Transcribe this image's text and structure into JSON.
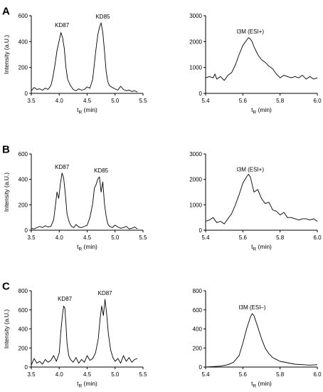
{
  "chart_data": [
    {
      "type": "line",
      "row_label": "A",
      "xlabel": "t",
      "xlabel_sub": "R",
      "xlabel_unit": " (min)",
      "ylabel": "Intensity (a.U.)",
      "xlim": [
        3.5,
        5.5
      ],
      "ylim": [
        0,
        600
      ],
      "xticks": [
        "3.5",
        "4.0",
        "4.5",
        "5.0",
        "5.5"
      ],
      "yticks": [
        "0",
        "200",
        "400",
        "600"
      ],
      "annotations": [
        {
          "text": "KD87",
          "x": 4.05,
          "y": 480
        },
        {
          "text": "KD85",
          "x": 4.78,
          "y": 545
        }
      ],
      "series": [
        {
          "x": [
            3.5,
            3.55,
            3.6,
            3.65,
            3.7,
            3.75,
            3.8,
            3.85,
            3.88,
            3.92,
            3.96,
            4.0,
            4.03,
            4.06,
            4.09,
            4.12,
            4.15,
            4.2,
            4.25,
            4.3,
            4.35,
            4.4,
            4.45,
            4.5,
            4.55,
            4.6,
            4.63,
            4.66,
            4.69,
            4.72,
            4.75,
            4.78,
            4.81,
            4.84,
            4.87,
            4.9,
            4.95,
            5.0,
            5.05,
            5.1,
            5.15,
            5.2,
            5.25,
            5.3,
            5.35,
            5.4
          ],
          "y": [
            20,
            45,
            30,
            35,
            25,
            40,
            30,
            60,
            110,
            210,
            330,
            410,
            470,
            430,
            350,
            200,
            110,
            60,
            30,
            20,
            35,
            25,
            30,
            50,
            40,
            110,
            230,
            350,
            450,
            510,
            545,
            470,
            330,
            170,
            90,
            60,
            45,
            35,
            25,
            55,
            30,
            20,
            25,
            15,
            20,
            10
          ]
        }
      ]
    },
    {
      "type": "line",
      "xlabel": "t",
      "xlabel_sub": "R",
      "xlabel_unit": " (min)",
      "xlim": [
        5.4,
        6.0
      ],
      "ylim": [
        0,
        3000
      ],
      "xticks": [
        "5.4",
        "5.6",
        "5.8",
        "6.0"
      ],
      "yticks": [
        "0",
        "1000",
        "2000",
        "3000"
      ],
      "annotations": [
        {
          "text": "I3M (ESI+)",
          "x": 5.64,
          "y": 2150
        }
      ],
      "series": [
        {
          "x": [
            5.4,
            5.42,
            5.44,
            5.45,
            5.46,
            5.48,
            5.5,
            5.52,
            5.54,
            5.56,
            5.58,
            5.6,
            5.62,
            5.63,
            5.64,
            5.65,
            5.66,
            5.68,
            5.7,
            5.72,
            5.74,
            5.76,
            5.78,
            5.8,
            5.82,
            5.84,
            5.86,
            5.88,
            5.9,
            5.92,
            5.94,
            5.96,
            5.98,
            6.0
          ],
          "y": [
            600,
            650,
            600,
            750,
            550,
            650,
            500,
            700,
            800,
            1100,
            1500,
            1850,
            2050,
            2150,
            2100,
            2000,
            1800,
            1500,
            1300,
            1200,
            1050,
            950,
            750,
            600,
            700,
            650,
            600,
            650,
            600,
            700,
            550,
            650,
            550,
            600
          ]
        }
      ]
    },
    {
      "type": "line",
      "row_label": "B",
      "xlabel": "t",
      "xlabel_sub": "R",
      "xlabel_unit": " (min)",
      "ylabel": "Intensity (a.U.)",
      "xlim": [
        3.5,
        5.5
      ],
      "ylim": [
        0,
        600
      ],
      "xticks": [
        "3.5",
        "4.0",
        "4.5",
        "5.0",
        "5.5"
      ],
      "yticks": [
        "0",
        "200",
        "400",
        "600"
      ],
      "annotations": [
        {
          "text": "KD87",
          "x": 4.05,
          "y": 450
        },
        {
          "text": "KD85",
          "x": 4.75,
          "y": 420
        }
      ],
      "series": [
        {
          "x": [
            3.5,
            3.55,
            3.6,
            3.65,
            3.7,
            3.75,
            3.8,
            3.85,
            3.9,
            3.93,
            3.96,
            3.99,
            4.02,
            4.05,
            4.08,
            4.11,
            4.14,
            4.18,
            4.22,
            4.26,
            4.3,
            4.35,
            4.4,
            4.45,
            4.5,
            4.55,
            4.6,
            4.63,
            4.66,
            4.69,
            4.72,
            4.75,
            4.78,
            4.81,
            4.84,
            4.87,
            4.9,
            4.95,
            5.0,
            5.05,
            5.1,
            5.15,
            5.2,
            5.25,
            5.3,
            5.35,
            5.4
          ],
          "y": [
            15,
            10,
            20,
            30,
            20,
            35,
            25,
            30,
            80,
            190,
            300,
            250,
            360,
            450,
            410,
            280,
            130,
            60,
            30,
            20,
            45,
            25,
            20,
            30,
            40,
            100,
            210,
            330,
            360,
            400,
            420,
            300,
            380,
            210,
            110,
            50,
            30,
            20,
            40,
            25,
            15,
            20,
            30,
            10,
            15,
            25,
            10
          ]
        }
      ]
    },
    {
      "type": "line",
      "xlabel": "t",
      "xlabel_sub": "R",
      "xlabel_unit": " (min)",
      "xlim": [
        5.4,
        6.0
      ],
      "ylim": [
        0,
        3000
      ],
      "xticks": [
        "5.4",
        "5.6",
        "5.8",
        "6.0"
      ],
      "yticks": [
        "0",
        "1000",
        "2000",
        "3000"
      ],
      "annotations": [
        {
          "text": "I3M (ESI+)",
          "x": 5.64,
          "y": 2150
        }
      ],
      "series": [
        {
          "x": [
            5.4,
            5.42,
            5.44,
            5.46,
            5.48,
            5.5,
            5.52,
            5.54,
            5.56,
            5.58,
            5.6,
            5.62,
            5.63,
            5.64,
            5.65,
            5.66,
            5.68,
            5.7,
            5.72,
            5.74,
            5.76,
            5.78,
            5.8,
            5.82,
            5.84,
            5.86,
            5.88,
            5.9,
            5.92,
            5.94,
            5.96,
            5.98,
            6.0
          ],
          "y": [
            350,
            400,
            500,
            300,
            350,
            250,
            450,
            650,
            1000,
            1400,
            1850,
            2100,
            2200,
            2100,
            1800,
            1500,
            1600,
            1250,
            1050,
            1100,
            800,
            750,
            600,
            700,
            500,
            500,
            450,
            400,
            450,
            450,
            400,
            450,
            350
          ]
        }
      ]
    },
    {
      "type": "line",
      "row_label": "C",
      "xlabel": "t",
      "xlabel_sub": "R",
      "xlabel_unit": " (min)",
      "ylabel": "Intensity (a.U.)",
      "xlim": [
        3.5,
        5.5
      ],
      "ylim": [
        0,
        800
      ],
      "xticks": [
        "3.5",
        "4.0",
        "4.5",
        "5.0",
        "5.5"
      ],
      "yticks": [
        "0",
        "200",
        "400",
        "600",
        "800"
      ],
      "annotations": [
        {
          "text": "KD87",
          "x": 4.1,
          "y": 650
        },
        {
          "text": "KD87",
          "x": 4.82,
          "y": 710
        }
      ],
      "series": [
        {
          "x": [
            3.5,
            3.55,
            3.6,
            3.65,
            3.7,
            3.75,
            3.8,
            3.85,
            3.9,
            3.95,
            4.0,
            4.03,
            4.06,
            4.08,
            4.1,
            4.12,
            4.14,
            4.17,
            4.2,
            4.25,
            4.3,
            4.35,
            4.4,
            4.45,
            4.5,
            4.55,
            4.6,
            4.65,
            4.7,
            4.73,
            4.76,
            4.79,
            4.82,
            4.85,
            4.88,
            4.92,
            4.96,
            5.0,
            5.05,
            5.1,
            5.15,
            5.2,
            5.25,
            5.3,
            5.35,
            5.4
          ],
          "y": [
            20,
            90,
            40,
            60,
            30,
            80,
            50,
            70,
            120,
            60,
            150,
            380,
            560,
            640,
            620,
            450,
            250,
            120,
            80,
            50,
            100,
            40,
            80,
            50,
            120,
            70,
            90,
            150,
            300,
            500,
            640,
            540,
            710,
            550,
            350,
            180,
            100,
            60,
            90,
            40,
            120,
            60,
            100,
            50,
            80,
            90
          ]
        }
      ]
    },
    {
      "type": "line",
      "xlabel": "t",
      "xlabel_sub": "R",
      "xlabel_unit": " (min)",
      "xlim": [
        5.4,
        6.0
      ],
      "ylim": [
        0,
        800
      ],
      "xticks": [
        "5.4",
        "5.6",
        "5.8",
        "6.0"
      ],
      "yticks": [
        "0",
        "200",
        "400",
        "600",
        "800"
      ],
      "annotations": [
        {
          "text": "I3M (ESI–)",
          "x": 5.65,
          "y": 560
        }
      ],
      "series": [
        {
          "x": [
            5.4,
            5.44,
            5.48,
            5.52,
            5.55,
            5.58,
            5.6,
            5.62,
            5.64,
            5.65,
            5.66,
            5.68,
            5.7,
            5.72,
            5.74,
            5.76,
            5.78,
            5.8,
            5.84,
            5.88,
            5.92,
            5.96,
            6.0
          ],
          "y": [
            0,
            5,
            10,
            25,
            50,
            120,
            250,
            400,
            520,
            560,
            540,
            420,
            300,
            200,
            140,
            100,
            80,
            60,
            45,
            30,
            25,
            20,
            25
          ]
        }
      ]
    }
  ]
}
